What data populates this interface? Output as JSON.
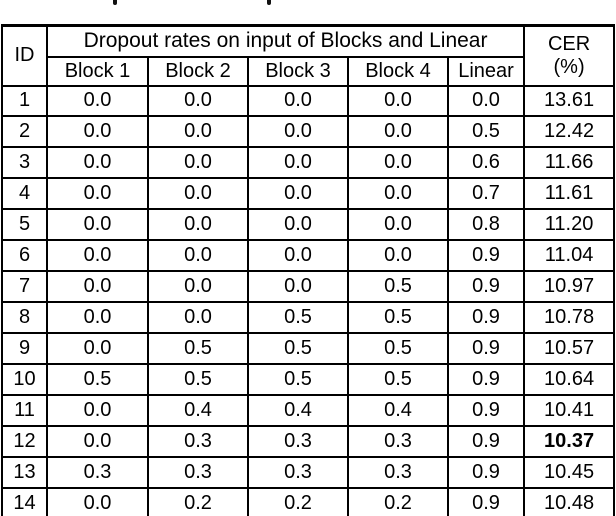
{
  "page": {
    "background_color": "#ffffff",
    "text_color": "#000000",
    "border_color": "#000000",
    "cropped_caption_marks": [
      "p-descender",
      "p-descender"
    ]
  },
  "table": {
    "header": {
      "id": "ID",
      "group": "Dropout rates on input of Blocks and Linear",
      "columns": [
        "Block 1",
        "Block 2",
        "Block 3",
        "Block 4",
        "Linear"
      ],
      "cer_line1": "CER",
      "cer_line2": "(%)"
    },
    "rows": [
      {
        "id": "1",
        "values": [
          "0.0",
          "0.0",
          "0.0",
          "0.0",
          "0.0"
        ],
        "cer": "13.61",
        "cer_bold": false
      },
      {
        "id": "2",
        "values": [
          "0.0",
          "0.0",
          "0.0",
          "0.0",
          "0.5"
        ],
        "cer": "12.42",
        "cer_bold": false
      },
      {
        "id": "3",
        "values": [
          "0.0",
          "0.0",
          "0.0",
          "0.0",
          "0.6"
        ],
        "cer": "11.66",
        "cer_bold": false
      },
      {
        "id": "4",
        "values": [
          "0.0",
          "0.0",
          "0.0",
          "0.0",
          "0.7"
        ],
        "cer": "11.61",
        "cer_bold": false
      },
      {
        "id": "5",
        "values": [
          "0.0",
          "0.0",
          "0.0",
          "0.0",
          "0.8"
        ],
        "cer": "11.20",
        "cer_bold": false
      },
      {
        "id": "6",
        "values": [
          "0.0",
          "0.0",
          "0.0",
          "0.0",
          "0.9"
        ],
        "cer": "11.04",
        "cer_bold": false
      },
      {
        "id": "7",
        "values": [
          "0.0",
          "0.0",
          "0.0",
          "0.5",
          "0.9"
        ],
        "cer": "10.97",
        "cer_bold": false
      },
      {
        "id": "8",
        "values": [
          "0.0",
          "0.0",
          "0.5",
          "0.5",
          "0.9"
        ],
        "cer": "10.78",
        "cer_bold": false
      },
      {
        "id": "9",
        "values": [
          "0.0",
          "0.5",
          "0.5",
          "0.5",
          "0.9"
        ],
        "cer": "10.57",
        "cer_bold": false
      },
      {
        "id": "10",
        "values": [
          "0.5",
          "0.5",
          "0.5",
          "0.5",
          "0.9"
        ],
        "cer": "10.64",
        "cer_bold": false
      },
      {
        "id": "11",
        "values": [
          "0.0",
          "0.4",
          "0.4",
          "0.4",
          "0.9"
        ],
        "cer": "10.41",
        "cer_bold": false
      },
      {
        "id": "12",
        "values": [
          "0.0",
          "0.3",
          "0.3",
          "0.3",
          "0.9"
        ],
        "cer": "10.37",
        "cer_bold": true
      },
      {
        "id": "13",
        "values": [
          "0.3",
          "0.3",
          "0.3",
          "0.3",
          "0.9"
        ],
        "cer": "10.45",
        "cer_bold": false
      },
      {
        "id": "14",
        "values": [
          "0.0",
          "0.2",
          "0.2",
          "0.2",
          "0.9"
        ],
        "cer": "10.48",
        "cer_bold": false
      }
    ]
  }
}
